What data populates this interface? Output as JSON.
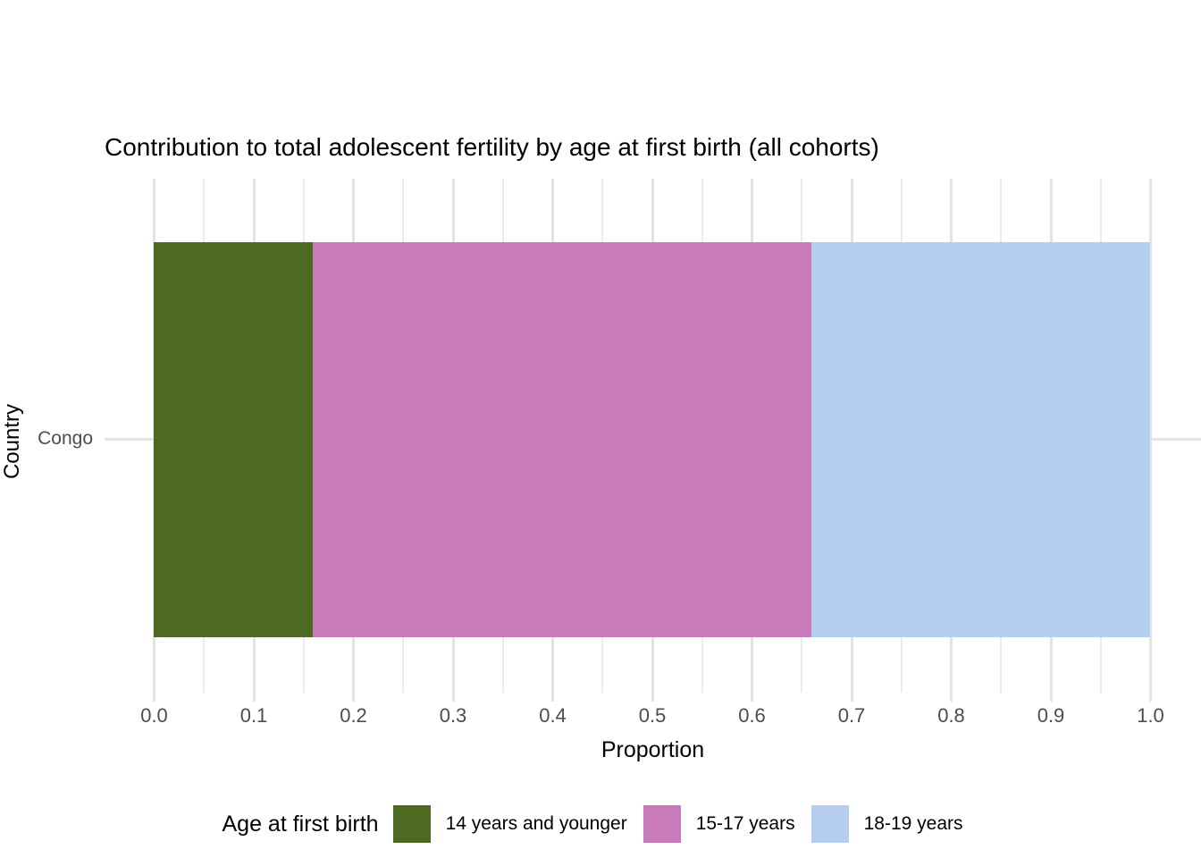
{
  "chart_data": {
    "type": "bar",
    "orientation": "horizontal",
    "stacked": true,
    "title": "Contribution to total adolescent fertility by age at first birth (all cohorts)",
    "xlabel": "Proportion",
    "ylabel": "Country",
    "categories": [
      "Congo"
    ],
    "series": [
      {
        "name": "14 years and younger",
        "values": [
          0.16
        ],
        "color": "#4C6A22"
      },
      {
        "name": "15-17 years",
        "values": [
          0.5
        ],
        "color": "#C87ABB"
      },
      {
        "name": "18-19 years",
        "values": [
          0.34
        ],
        "color": "#B5CDEE"
      }
    ],
    "xlim": [
      0,
      1
    ],
    "x_major_ticks": [
      0.0,
      0.1,
      0.2,
      0.3,
      0.4,
      0.5,
      0.6,
      0.7,
      0.8,
      0.9,
      1.0
    ],
    "x_tick_labels": [
      "0.0",
      "0.1",
      "0.2",
      "0.3",
      "0.4",
      "0.5",
      "0.6",
      "0.7",
      "0.8",
      "0.9",
      "1.0"
    ],
    "x_minor_ticks": [
      0.05,
      0.15,
      0.25,
      0.35,
      0.45,
      0.55,
      0.65,
      0.75,
      0.85,
      0.95
    ],
    "grid": {
      "on": true,
      "major_color": "#E3E3E3",
      "minor_color": "#EBEBEB",
      "background": "#FFFFFF"
    },
    "legend": {
      "title": "Age at first birth",
      "position": "bottom"
    },
    "text_colors": {
      "title": "#000000",
      "axis_titles": "#000000",
      "tick_labels": "#4D4D4D"
    }
  }
}
